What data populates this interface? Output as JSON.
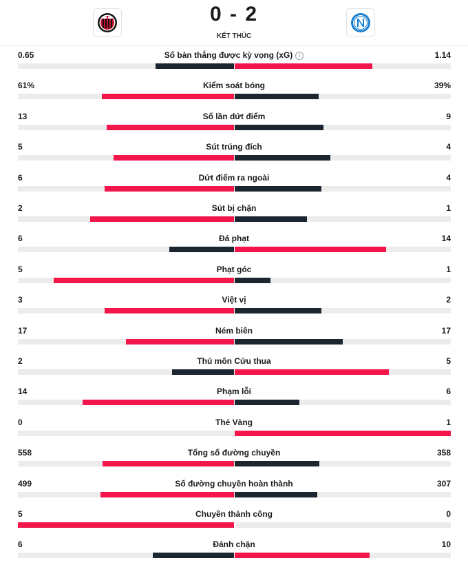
{
  "match": {
    "score": "0 - 2",
    "status": "KẾT THÚC",
    "home_logo_text": "ACM",
    "away_logo_text": "N"
  },
  "colors": {
    "red": "#f3164b",
    "dark": "#1b2631",
    "track": "#ececec"
  },
  "stats": [
    {
      "label": "Số bàn thắng được kỳ vọng (xG)",
      "home": "0.65",
      "away": "1.14",
      "home_frac": 0.363,
      "away_frac": 0.637,
      "info": true
    },
    {
      "label": "Kiểm soát bóng",
      "home": "61%",
      "away": "39%",
      "home_frac": 0.61,
      "away_frac": 0.39
    },
    {
      "label": "Số lần dứt điểm",
      "home": "13",
      "away": "9",
      "home_frac": 0.59,
      "away_frac": 0.41
    },
    {
      "label": "Sút trúng đích",
      "home": "5",
      "away": "4",
      "home_frac": 0.556,
      "away_frac": 0.444
    },
    {
      "label": "Dứt điểm ra ngoài",
      "home": "6",
      "away": "4",
      "home_frac": 0.6,
      "away_frac": 0.4
    },
    {
      "label": "Sút bị chặn",
      "home": "2",
      "away": "1",
      "home_frac": 0.667,
      "away_frac": 0.333
    },
    {
      "label": "Đá phạt",
      "home": "6",
      "away": "14",
      "home_frac": 0.3,
      "away_frac": 0.7
    },
    {
      "label": "Phạt góc",
      "home": "5",
      "away": "1",
      "home_frac": 0.833,
      "away_frac": 0.167
    },
    {
      "label": "Việt vị",
      "home": "3",
      "away": "2",
      "home_frac": 0.6,
      "away_frac": 0.4
    },
    {
      "label": "Ném biên",
      "home": "17",
      "away": "17",
      "home_frac": 0.5,
      "away_frac": 0.5
    },
    {
      "label": "Thủ môn Cứu thua",
      "home": "2",
      "away": "5",
      "home_frac": 0.286,
      "away_frac": 0.714
    },
    {
      "label": "Phạm lỗi",
      "home": "14",
      "away": "6",
      "home_frac": 0.7,
      "away_frac": 0.3
    },
    {
      "label": "Thẻ Vàng",
      "home": "0",
      "away": "1",
      "home_frac": 0.0,
      "away_frac": 1.0
    },
    {
      "label": "Tổng số đường chuyền",
      "home": "558",
      "away": "358",
      "home_frac": 0.609,
      "away_frac": 0.391
    },
    {
      "label": "Số đường chuyền hoàn thành",
      "home": "499",
      "away": "307",
      "home_frac": 0.619,
      "away_frac": 0.381
    },
    {
      "label": "Chuyền thành công",
      "home": "5",
      "away": "0",
      "home_frac": 1.0,
      "away_frac": 0.0
    },
    {
      "label": "Đánh chặn",
      "home": "6",
      "away": "10",
      "home_frac": 0.375,
      "away_frac": 0.625
    }
  ]
}
